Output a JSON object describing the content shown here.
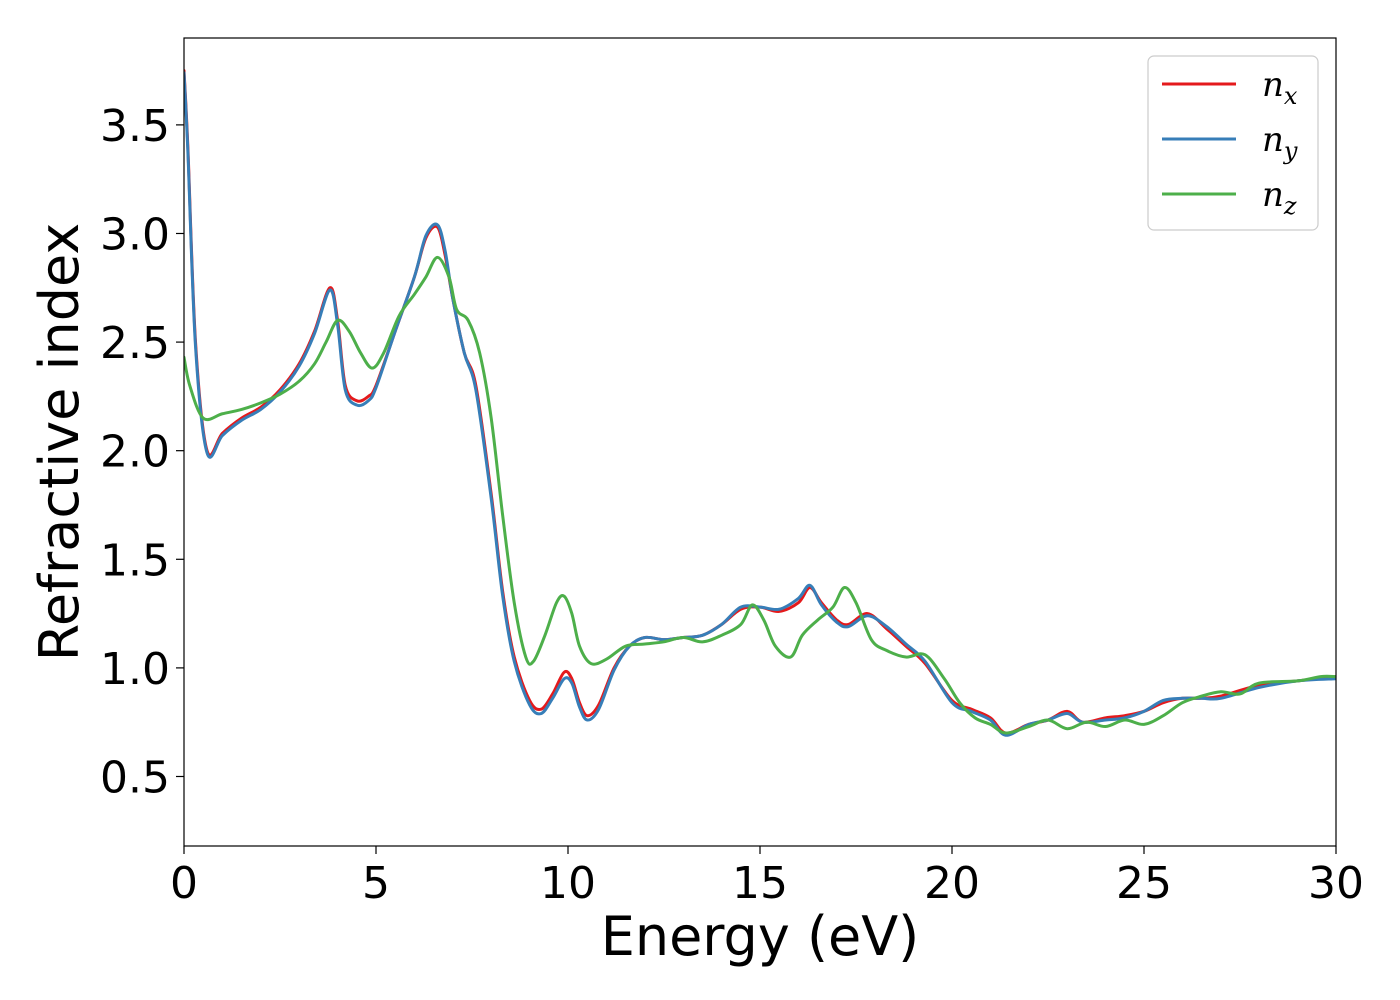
{
  "chart_data": {
    "type": "line",
    "xlabel": "Energy (eV)",
    "ylabel": "Refractive index",
    "xlim": [
      0,
      30
    ],
    "ylim": [
      0.18,
      3.9
    ],
    "xticks": [
      0,
      5,
      10,
      15,
      20,
      25,
      30
    ],
    "xtick_labels": [
      "0",
      "5",
      "10",
      "15",
      "20",
      "25",
      "30"
    ],
    "yticks": [
      0.5,
      1.0,
      1.5,
      2.0,
      2.5,
      3.0,
      3.5
    ],
    "ytick_labels": [
      "0.5",
      "1.0",
      "1.5",
      "2.0",
      "2.5",
      "3.0",
      "3.5"
    ],
    "grid": false,
    "legend_position": "top-right",
    "series": [
      {
        "name": "n",
        "subscript": "x",
        "color": "#e41a1c",
        "x": [
          0,
          0.1,
          0.3,
          0.6,
          1.0,
          1.5,
          2.0,
          2.5,
          3.0,
          3.4,
          3.8,
          4.0,
          4.2,
          4.5,
          4.8,
          5.0,
          5.5,
          6.0,
          6.3,
          6.6,
          6.8,
          7.0,
          7.3,
          7.6,
          8.0,
          8.3,
          8.6,
          9.0,
          9.3,
          9.6,
          9.9,
          10.1,
          10.3,
          10.5,
          10.8,
          11.2,
          11.6,
          12.0,
          12.5,
          13.0,
          13.5,
          14.0,
          14.5,
          15.0,
          15.5,
          16.0,
          16.3,
          16.6,
          17.0,
          17.3,
          17.8,
          18.3,
          18.8,
          19.3,
          20.0,
          20.5,
          21.0,
          21.4,
          22.0,
          22.5,
          23.0,
          23.4,
          24.0,
          24.5,
          25.0,
          25.5,
          26.0,
          26.5,
          27.0,
          28.0,
          29.0,
          30.0
        ],
        "y": [
          3.75,
          3.4,
          2.5,
          2.0,
          2.08,
          2.15,
          2.2,
          2.28,
          2.4,
          2.55,
          2.75,
          2.6,
          2.3,
          2.23,
          2.25,
          2.3,
          2.55,
          2.8,
          2.98,
          3.03,
          2.9,
          2.7,
          2.45,
          2.3,
          1.8,
          1.35,
          1.05,
          0.85,
          0.81,
          0.88,
          0.98,
          0.95,
          0.84,
          0.78,
          0.83,
          1.0,
          1.1,
          1.14,
          1.13,
          1.14,
          1.15,
          1.2,
          1.27,
          1.28,
          1.26,
          1.3,
          1.37,
          1.3,
          1.22,
          1.2,
          1.25,
          1.18,
          1.1,
          1.02,
          0.85,
          0.81,
          0.77,
          0.7,
          0.74,
          0.76,
          0.8,
          0.75,
          0.77,
          0.78,
          0.8,
          0.84,
          0.86,
          0.86,
          0.87,
          0.92,
          0.94,
          0.96
        ]
      },
      {
        "name": "n",
        "subscript": "y",
        "color": "#377eb8",
        "x": [
          0,
          0.1,
          0.3,
          0.6,
          1.0,
          1.5,
          2.0,
          2.5,
          3.0,
          3.4,
          3.8,
          4.0,
          4.2,
          4.5,
          4.8,
          5.0,
          5.5,
          6.0,
          6.3,
          6.6,
          6.8,
          7.0,
          7.3,
          7.6,
          8.0,
          8.3,
          8.6,
          9.0,
          9.3,
          9.6,
          9.9,
          10.1,
          10.3,
          10.5,
          10.8,
          11.2,
          11.6,
          12.0,
          12.5,
          13.0,
          13.5,
          14.0,
          14.5,
          15.0,
          15.5,
          16.0,
          16.3,
          16.6,
          17.0,
          17.3,
          17.8,
          18.3,
          18.8,
          19.3,
          20.0,
          20.5,
          21.0,
          21.4,
          22.0,
          22.5,
          23.0,
          23.4,
          24.0,
          24.5,
          25.0,
          25.5,
          26.0,
          26.5,
          27.0,
          28.0,
          29.0,
          30.0
        ],
        "y": [
          3.74,
          3.38,
          2.48,
          1.99,
          2.07,
          2.14,
          2.19,
          2.27,
          2.39,
          2.54,
          2.74,
          2.58,
          2.28,
          2.21,
          2.23,
          2.29,
          2.55,
          2.8,
          2.99,
          3.04,
          2.92,
          2.7,
          2.45,
          2.28,
          1.78,
          1.33,
          1.03,
          0.83,
          0.79,
          0.86,
          0.95,
          0.93,
          0.82,
          0.76,
          0.81,
          0.99,
          1.1,
          1.14,
          1.13,
          1.14,
          1.15,
          1.2,
          1.28,
          1.28,
          1.27,
          1.32,
          1.38,
          1.29,
          1.21,
          1.19,
          1.24,
          1.19,
          1.11,
          1.03,
          0.84,
          0.8,
          0.76,
          0.69,
          0.74,
          0.76,
          0.79,
          0.75,
          0.76,
          0.77,
          0.8,
          0.85,
          0.86,
          0.86,
          0.86,
          0.91,
          0.94,
          0.95
        ]
      },
      {
        "name": "n",
        "subscript": "z",
        "color": "#4daf4a",
        "x": [
          0,
          0.15,
          0.5,
          1.0,
          1.5,
          2.0,
          2.5,
          3.0,
          3.4,
          3.7,
          4.0,
          4.3,
          4.6,
          4.9,
          5.2,
          5.6,
          6.0,
          6.3,
          6.6,
          6.9,
          7.1,
          7.4,
          7.7,
          8.0,
          8.3,
          8.6,
          8.9,
          9.1,
          9.4,
          9.7,
          9.9,
          10.1,
          10.3,
          10.6,
          11.0,
          11.5,
          12.0,
          12.5,
          13.0,
          13.5,
          14.0,
          14.5,
          14.8,
          15.1,
          15.4,
          15.8,
          16.1,
          16.5,
          16.9,
          17.2,
          17.5,
          17.9,
          18.3,
          18.8,
          19.3,
          19.8,
          20.2,
          20.6,
          21.0,
          21.4,
          22.0,
          22.5,
          23.0,
          23.5,
          24.0,
          24.5,
          25.0,
          25.5,
          26.0,
          26.5,
          27.0,
          27.5,
          28.0,
          29.0,
          29.6,
          30.0
        ],
        "y": [
          2.43,
          2.3,
          2.15,
          2.17,
          2.19,
          2.22,
          2.26,
          2.32,
          2.4,
          2.5,
          2.6,
          2.55,
          2.45,
          2.38,
          2.45,
          2.62,
          2.72,
          2.8,
          2.89,
          2.8,
          2.65,
          2.6,
          2.45,
          2.15,
          1.7,
          1.3,
          1.05,
          1.03,
          1.15,
          1.3,
          1.33,
          1.25,
          1.1,
          1.02,
          1.04,
          1.1,
          1.11,
          1.12,
          1.14,
          1.12,
          1.15,
          1.2,
          1.29,
          1.22,
          1.1,
          1.05,
          1.15,
          1.22,
          1.28,
          1.37,
          1.3,
          1.13,
          1.08,
          1.05,
          1.06,
          0.95,
          0.84,
          0.77,
          0.74,
          0.7,
          0.73,
          0.76,
          0.72,
          0.75,
          0.73,
          0.76,
          0.74,
          0.78,
          0.84,
          0.87,
          0.89,
          0.88,
          0.93,
          0.94,
          0.96,
          0.96
        ]
      }
    ]
  }
}
